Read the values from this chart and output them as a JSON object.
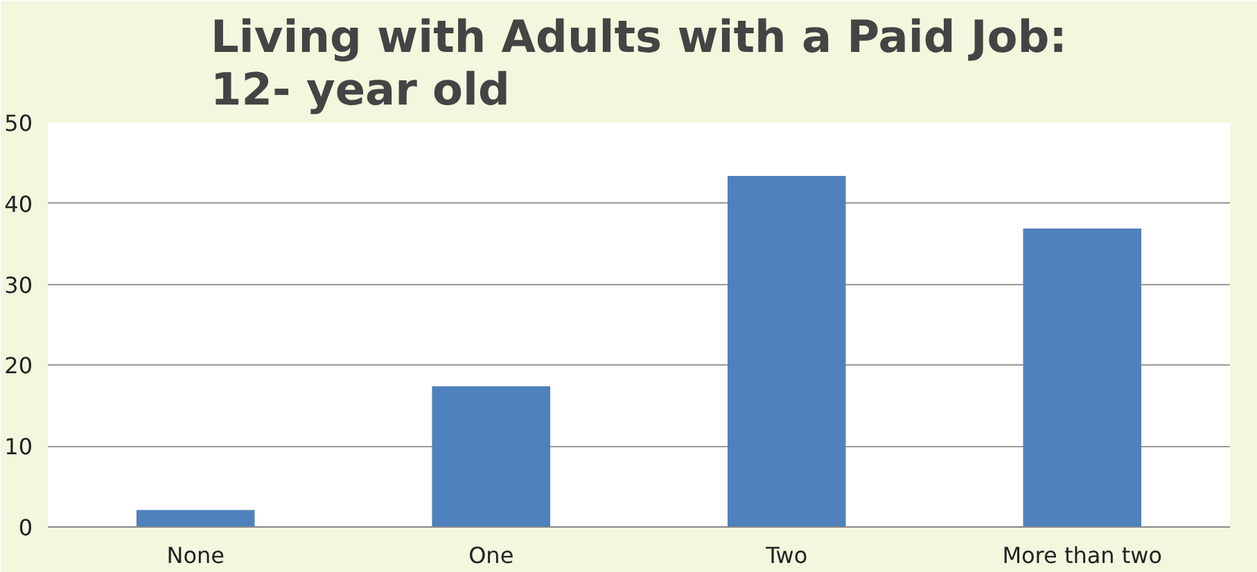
{
  "chart_data": {
    "type": "bar",
    "title": "Living with Adults with a Paid Job:\n12- year old",
    "categories": [
      "None",
      "One",
      "Two",
      "More than two"
    ],
    "values": [
      2.1,
      17.4,
      43.4,
      36.9
    ],
    "color": "#4f81bd",
    "ylim": [
      0,
      50
    ],
    "yticks": [
      0,
      10,
      20,
      30,
      40,
      50
    ],
    "grid": "y"
  }
}
